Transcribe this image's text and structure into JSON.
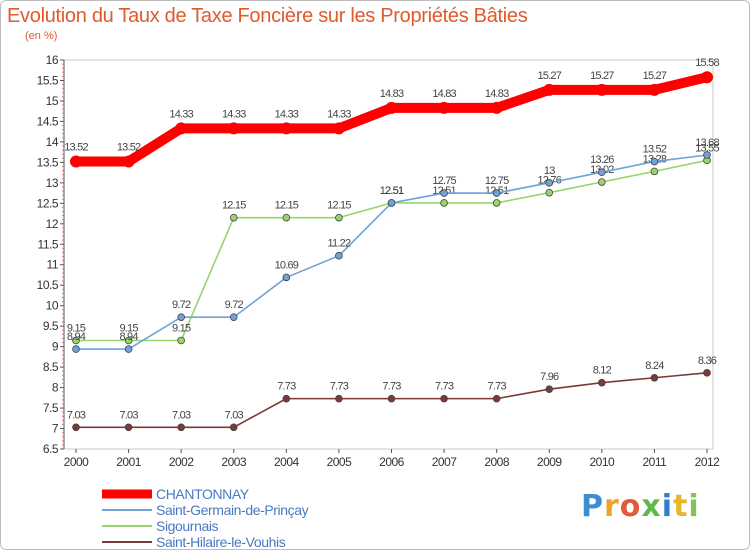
{
  "title": "Evolution du Taux de Taxe Foncière sur les Propriétés Bâties",
  "unit_label": "(en %)",
  "logo": [
    "P",
    "r",
    "o",
    "x",
    "i",
    "t",
    "i"
  ],
  "chart_data": {
    "type": "line",
    "title": "Evolution du Taux de Taxe Foncière sur les Propriétés Bâties",
    "ylabel": "(en %)",
    "xlabel": "",
    "ylim": [
      6.5,
      16
    ],
    "ytick_step": 0.5,
    "x": [
      2000,
      2001,
      2002,
      2003,
      2004,
      2005,
      2006,
      2007,
      2008,
      2009,
      2010,
      2011,
      2012
    ],
    "grid": false,
    "legend": "bottom-left",
    "series": [
      {
        "name": "CHANTONNAY",
        "color": "#ff0000",
        "values": [
          13.52,
          13.52,
          14.33,
          14.33,
          14.33,
          14.33,
          14.83,
          14.83,
          14.83,
          15.27,
          15.27,
          15.27,
          15.58
        ]
      },
      {
        "name": "Saint-Germain-de-Prinçay",
        "color": "#6fa3d8",
        "values": [
          8.94,
          8.94,
          9.72,
          9.72,
          10.69,
          11.22,
          12.51,
          12.75,
          12.75,
          13,
          13.26,
          13.52,
          13.68
        ]
      },
      {
        "name": "Sigournais",
        "color": "#99d46b",
        "values": [
          9.15,
          9.15,
          9.15,
          12.15,
          12.15,
          12.15,
          12.51,
          12.51,
          12.51,
          12.76,
          13.02,
          13.28,
          13.55
        ]
      },
      {
        "name": "Saint-Hilaire-le-Vouhis",
        "color": "#7a3a3a",
        "values": [
          7.03,
          7.03,
          7.03,
          7.03,
          7.73,
          7.73,
          7.73,
          7.73,
          7.73,
          7.96,
          8.12,
          8.24,
          8.36
        ]
      }
    ]
  }
}
